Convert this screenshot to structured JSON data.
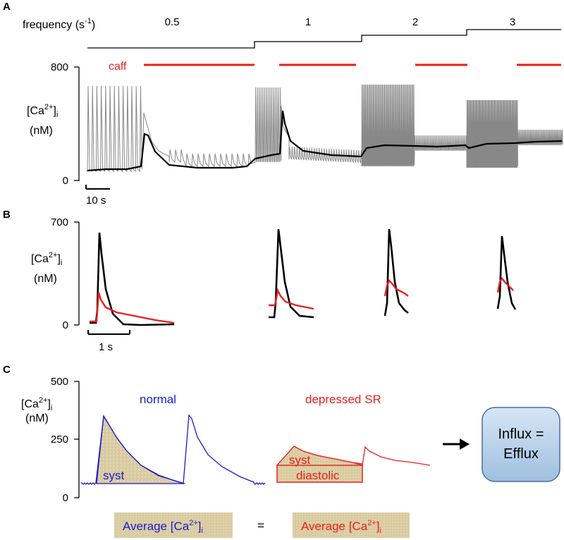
{
  "panel_a": {
    "letter": "A",
    "frequency_label": "frequency (s",
    "frequency_exp": "-1",
    "frequency_close": ")",
    "frequencies": [
      "0.5",
      "1",
      "2",
      "3"
    ],
    "y_max": "800",
    "y_min": "0",
    "y_label_main": "[Ca",
    "y_label_sup": "2+",
    "y_label_close": "]",
    "y_label_sub": "i",
    "y_unit": "(nM)",
    "caff_label": "caff",
    "scale_bar": "10 s"
  },
  "panel_b": {
    "letter": "B",
    "y_max": "700",
    "y_min": "0",
    "y_label_main": "[Ca",
    "y_label_sup": "2+",
    "y_label_close": "]",
    "y_label_sub": "i",
    "y_unit": "(nM)",
    "scale_bar": "1 s"
  },
  "panel_c": {
    "letter": "C",
    "y_max": "500",
    "y_mid": "250",
    "y_min": "0",
    "y_label_main": "[Ca",
    "y_label_sup": "2+",
    "y_label_close": "]",
    "y_label_sub": "i",
    "y_unit": "(nM)",
    "normal_label": "normal",
    "depressed_label": "depressed SR",
    "syst_label": "syst",
    "diastolic_label": "diastolic",
    "box_line1": "Influx =",
    "box_line2": "Efflux",
    "avg_left": "Average [Ca",
    "avg_right": "Average [Ca",
    "avg_sup": "2+",
    "avg_close": "]",
    "avg_sub": "i",
    "equals": "="
  },
  "colors": {
    "black": "#000000",
    "grey": "#888888",
    "red": "#e8201e",
    "blue": "#1a1ad0",
    "hatch": "#d9cba0",
    "box_fill": "#b9d1ea",
    "box_stroke": "#4a6f9a"
  }
}
